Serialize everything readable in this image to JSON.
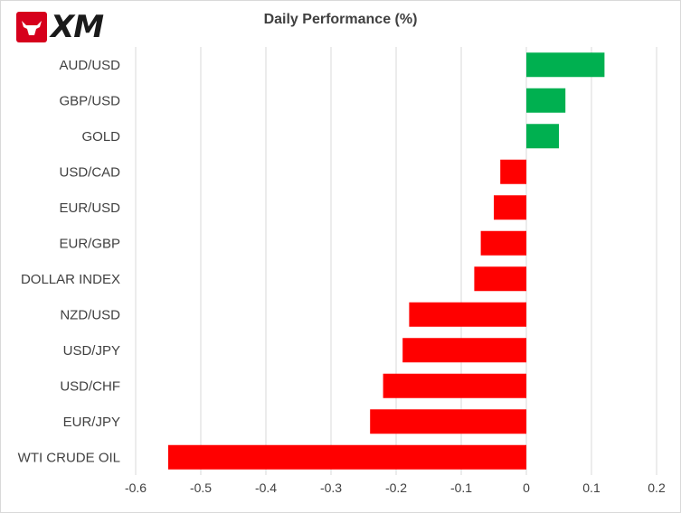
{
  "brand": {
    "logo_text": "XM",
    "logo_icon": "bull-icon",
    "logo_color": "#d6001c"
  },
  "chart_data": {
    "type": "bar",
    "orientation": "horizontal",
    "title": "Daily Performance (%)",
    "categories": [
      "AUD/USD",
      "GBP/USD",
      "GOLD",
      "USD/CAD",
      "EUR/USD",
      "EUR/GBP",
      "DOLLAR INDEX",
      "NZD/USD",
      "USD/JPY",
      "USD/CHF",
      "EUR/JPY",
      "WTI CRUDE OIL"
    ],
    "values": [
      0.12,
      0.06,
      0.05,
      -0.04,
      -0.05,
      -0.07,
      -0.08,
      -0.18,
      -0.19,
      -0.22,
      -0.24,
      -0.55
    ],
    "xlim": [
      -0.6,
      0.2
    ],
    "xticks": [
      -0.6,
      -0.5,
      -0.4,
      -0.3,
      -0.2,
      -0.1,
      0,
      0.1,
      0.2
    ],
    "xtick_labels": [
      "-0.6",
      "-0.5",
      "-0.4",
      "-0.3",
      "-0.2",
      "-0.1",
      "0",
      "0.1",
      "0.2"
    ],
    "grid": "vertical",
    "legend": "none",
    "colors": {
      "positive": "#00b050",
      "negative": "#ff0000",
      "grid": "#d9d9d9",
      "text": "#404040"
    }
  }
}
